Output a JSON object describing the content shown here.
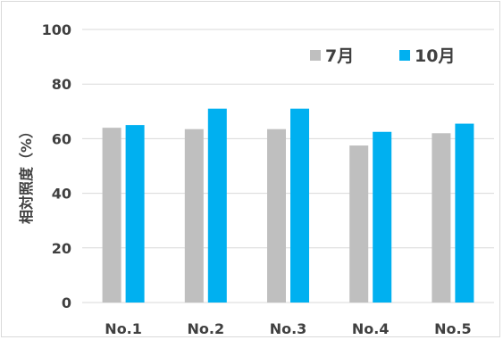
{
  "chart_data": {
    "type": "bar",
    "title": "",
    "xlabel": "",
    "ylabel": "相対照度（%）",
    "categories": [
      "No.1",
      "No.2",
      "No.3",
      "No.4",
      "No.5"
    ],
    "series": [
      {
        "name": "7月",
        "color": "#bfbfbf",
        "values": [
          64,
          63.5,
          63.5,
          57.5,
          62
        ]
      },
      {
        "name": "10月",
        "color": "#00b0f0",
        "values": [
          65,
          71,
          71,
          62.5,
          65.5
        ]
      }
    ],
    "ylim": [
      0,
      100
    ],
    "yticks": [
      "0",
      "20",
      "40",
      "60",
      "80",
      "100"
    ],
    "grid": true,
    "legend": "top-right"
  }
}
